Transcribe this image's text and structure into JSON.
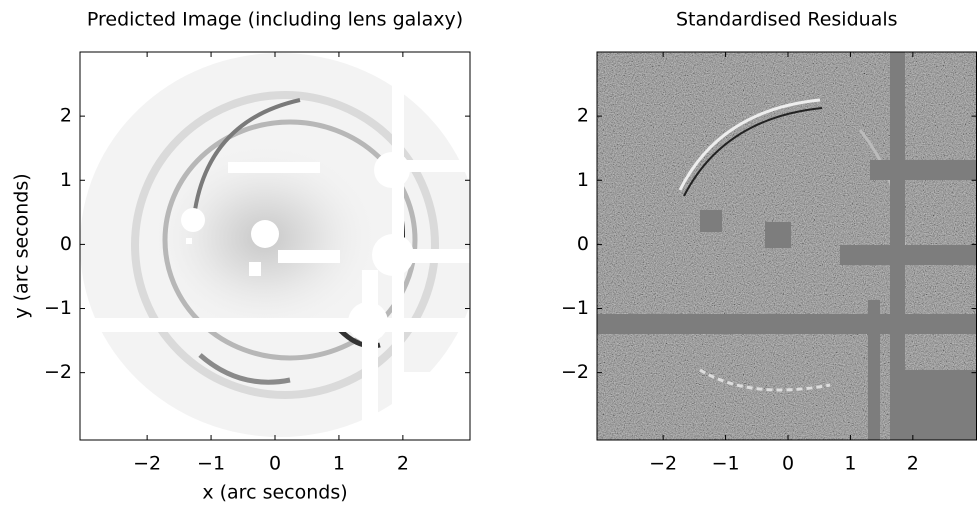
{
  "chart_data": [
    {
      "type": "image",
      "title": "Predicted Image (including lens galaxy)",
      "xlabel": "x (arc seconds)",
      "ylabel": "y (arc seconds)",
      "xlim": [
        -3.05,
        3.05
      ],
      "ylim": [
        -3.05,
        3.0
      ],
      "xticks": [
        {
          "value": -2,
          "label": "−2"
        },
        {
          "value": -1,
          "label": "−1"
        },
        0,
        1,
        2
      ],
      "yticks": [
        {
          "value": -2,
          "label": "−2"
        },
        {
          "value": -1,
          "label": "−1"
        },
        0,
        1,
        2
      ]
    },
    {
      "type": "image",
      "title": "Standardised Residuals",
      "xlim": [
        -3.06,
        3.02
      ],
      "ylim": [
        -3.05,
        3.0
      ],
      "xticks": [
        {
          "value": -2,
          "label": "−2"
        },
        {
          "value": -1,
          "label": "−1"
        },
        0,
        1,
        2
      ],
      "yticks": [
        {
          "value": -2,
          "label": "−2"
        },
        {
          "value": -1,
          "label": "−1"
        },
        0,
        1,
        2
      ]
    }
  ]
}
